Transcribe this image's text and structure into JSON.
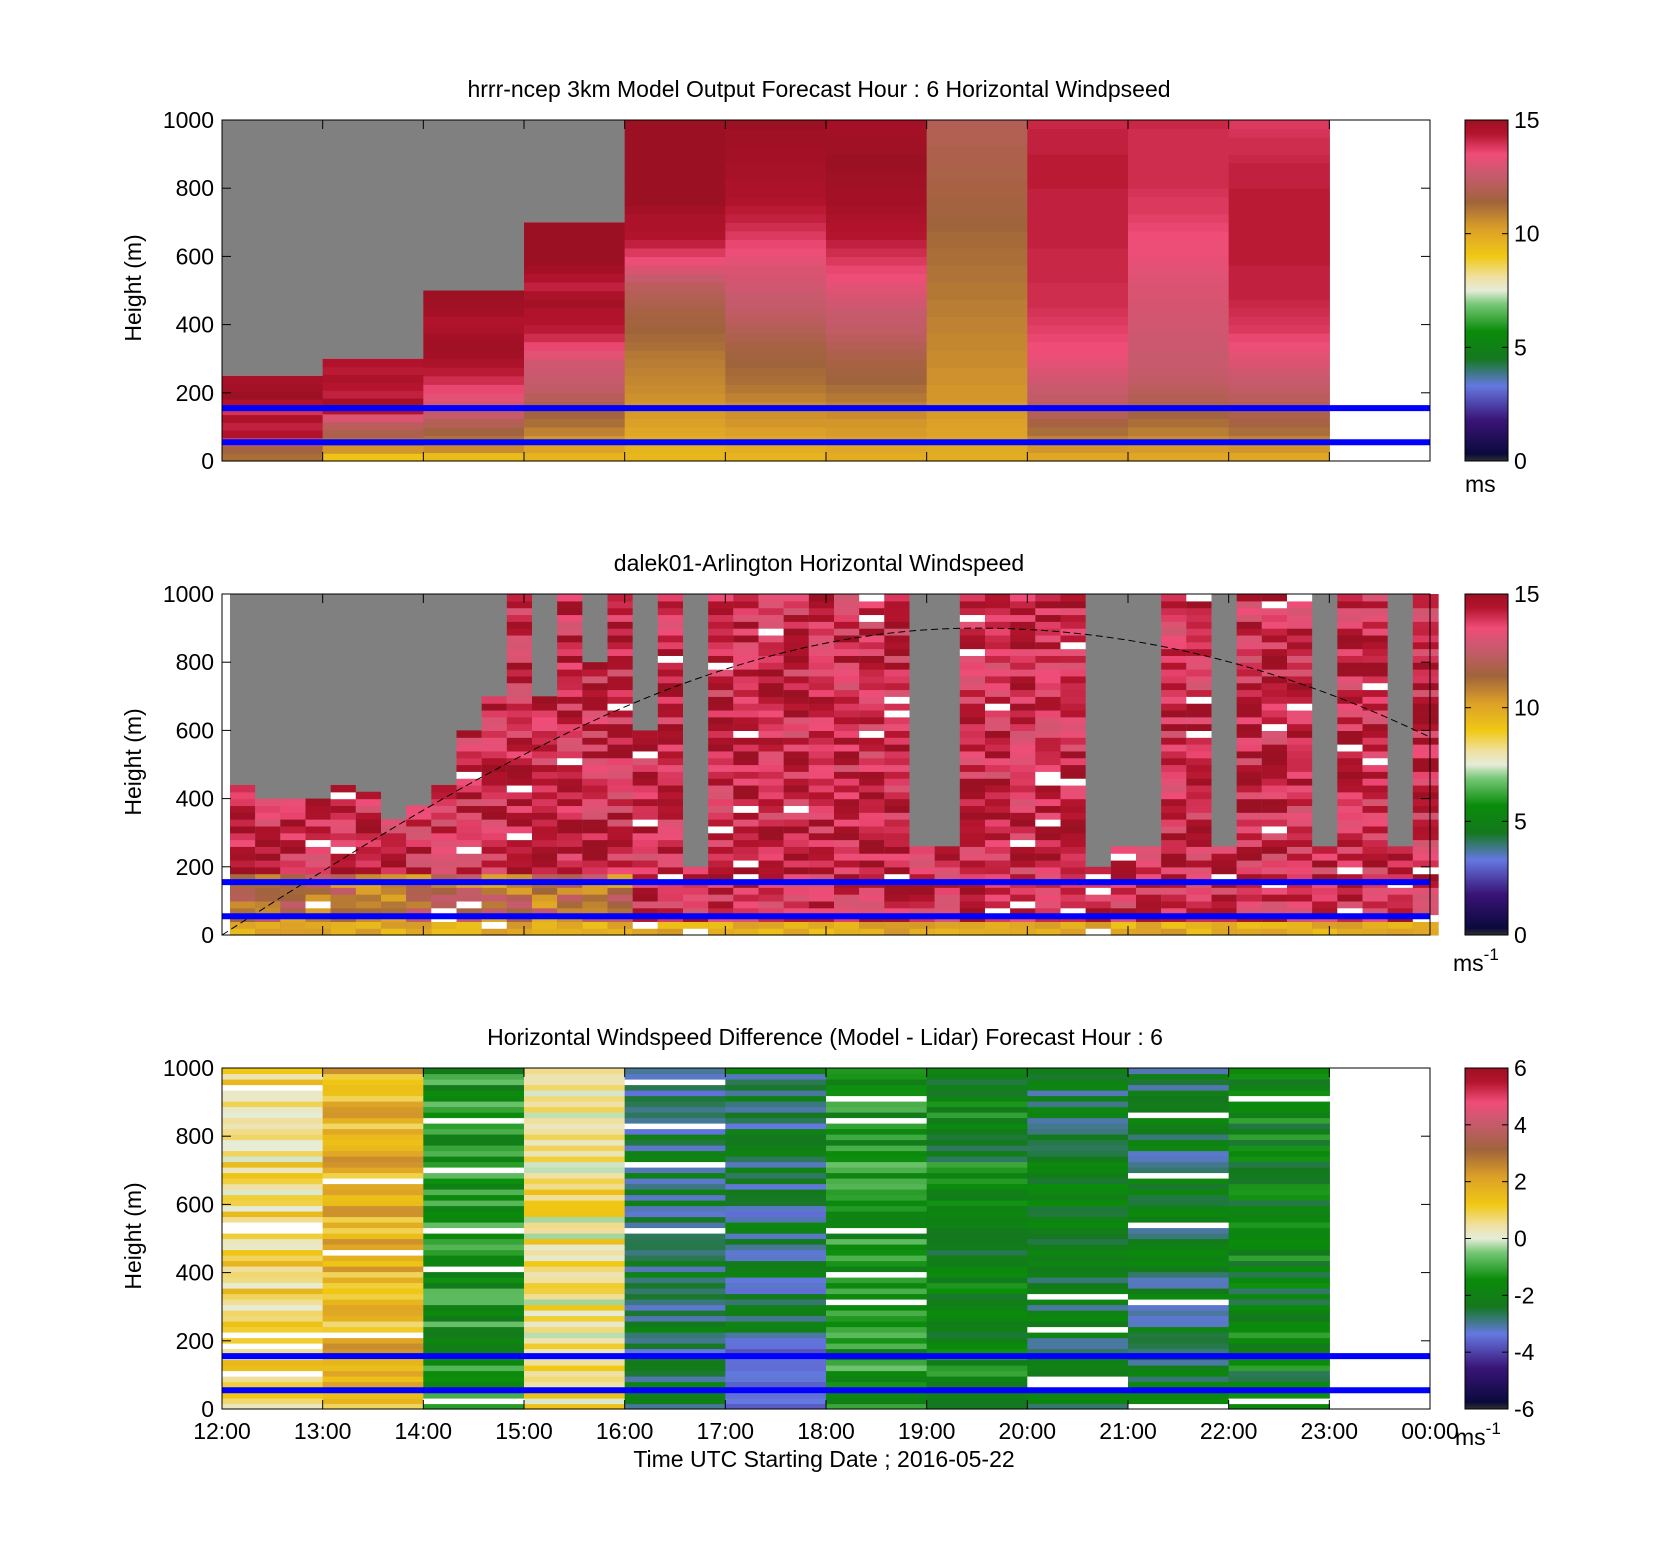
{
  "figure": {
    "xlabel": "Time UTC  Starting Date ; 2016-05-22",
    "x_ticks": [
      "12:00",
      "13:00",
      "14:00",
      "15:00",
      "16:00",
      "17:00",
      "18:00",
      "19:00",
      "20:00",
      "21:00",
      "22:00",
      "23:00",
      "00:00"
    ]
  },
  "colors": {
    "reference_line": "#0000ff",
    "no_data": "#808080",
    "colormap": [
      [
        0,
        "#303030"
      ],
      [
        0.02,
        "#0a0a3c"
      ],
      [
        0.12,
        "#3a1478"
      ],
      [
        0.22,
        "#6478e0"
      ],
      [
        0.3,
        "#14781e"
      ],
      [
        0.38,
        "#0a8c0a"
      ],
      [
        0.46,
        "#78c878"
      ],
      [
        0.5,
        "#e6ecd8"
      ],
      [
        0.54,
        "#f0e0a0"
      ],
      [
        0.6,
        "#f0c814"
      ],
      [
        0.68,
        "#dca028"
      ],
      [
        0.76,
        "#a0643c"
      ],
      [
        0.84,
        "#c85a6e"
      ],
      [
        0.9,
        "#f04c78"
      ],
      [
        0.96,
        "#b4142d"
      ],
      [
        1,
        "#9c1024"
      ]
    ]
  },
  "chart_data": [
    {
      "id": "model",
      "type": "heatmap",
      "title": "hrrr-ncep 3km Model Output   Forecast Hour : 6 Horizontal Windpseed",
      "ylabel": "Height (m)",
      "x_range": [
        "12:00",
        "00:00"
      ],
      "ylim": [
        0,
        1000
      ],
      "y_ticks": [
        0,
        200,
        400,
        600,
        800,
        1000
      ],
      "colorbar": {
        "range": [
          0,
          15
        ],
        "ticks": [
          0,
          5,
          10,
          15
        ],
        "unit": "ms"
      },
      "reference_lines_m": [
        155,
        55
      ],
      "series": [
        {
          "start": "12:00",
          "top_m": 250,
          "speeds": [
            11.2,
            11.5,
            12.7,
            14.5,
            14.2,
            14.6,
            13.9,
            14.5,
            15.0,
            14.8,
            14.7
          ]
        },
        {
          "start": "13:00",
          "top_m": 300,
          "speeds": [
            9.1,
            10.4,
            11.0,
            11.8,
            12.2,
            13.0,
            14.5,
            14.8,
            14.2,
            14.4,
            14.6,
            14.3,
            14.5
          ]
        },
        {
          "start": "14:00",
          "top_m": 500,
          "speeds": [
            9.4,
            10.6,
            11.1,
            11.5,
            12.0,
            12.5,
            12.8,
            13.2,
            13.6,
            14.0,
            14.3,
            14.6,
            14.8,
            14.9,
            14.8,
            14.6,
            14.5,
            14.8,
            14.9,
            15.0
          ]
        },
        {
          "start": "15:00",
          "top_m": 700,
          "speeds": [
            9.6,
            10.1,
            10.4,
            10.8,
            11.2,
            11.5,
            11.8,
            12.1,
            12.4,
            12.5,
            12.7,
            12.8,
            13.2,
            13.6,
            14.0,
            14.3,
            14.5,
            14.5,
            14.8,
            14.6,
            14.2,
            14.5,
            14.8,
            15.0,
            15.1,
            15.1,
            15.0,
            15.0
          ]
        },
        {
          "start": "16:00",
          "top_m": 1000,
          "speeds": [
            9.5,
            9.6,
            9.8,
            10.0,
            10.2,
            10.3,
            10.4,
            10.5,
            10.6,
            10.7,
            10.8,
            10.9,
            11.0,
            11.2,
            11.3,
            11.4,
            11.5,
            11.6,
            11.8,
            12.0,
            12.2,
            12.6,
            13.0,
            13.4,
            13.8,
            14.2,
            14.5,
            14.6,
            14.6,
            14.8,
            15.0,
            15.1,
            15.3,
            15.4,
            15.5,
            15.5,
            15.6,
            15.6,
            15.6,
            15.7
          ]
        },
        {
          "start": "17:00",
          "top_m": 1000,
          "speeds": [
            9.6,
            9.8,
            10.0,
            10.2,
            10.4,
            10.5,
            10.6,
            10.8,
            11.0,
            11.2,
            11.3,
            11.4,
            11.5,
            11.6,
            11.8,
            12.0,
            12.2,
            12.4,
            12.5,
            12.6,
            12.8,
            12.9,
            13.0,
            13.2,
            13.4,
            13.6,
            13.8,
            14.0,
            14.2,
            14.3,
            14.5,
            14.6,
            14.6,
            14.7,
            14.7,
            14.8,
            14.8,
            14.9,
            14.9,
            15.0
          ]
        },
        {
          "start": "18:00",
          "top_m": 1000,
          "speeds": [
            9.8,
            10.0,
            10.2,
            10.3,
            10.4,
            10.6,
            10.8,
            11.0,
            11.2,
            11.4,
            11.5,
            11.6,
            11.8,
            12.0,
            12.2,
            12.4,
            12.5,
            12.6,
            12.8,
            13.0,
            13.2,
            13.4,
            13.6,
            13.8,
            14.0,
            14.2,
            14.4,
            14.5,
            14.6,
            14.7,
            14.8,
            14.8,
            14.9,
            14.9,
            15.0,
            15.0,
            14.9,
            14.9,
            14.8,
            14.8
          ]
        },
        {
          "start": "19:00",
          "top_m": 1000,
          "speeds": [
            9.8,
            9.9,
            10.0,
            10.1,
            10.2,
            10.3,
            10.3,
            10.4,
            10.4,
            10.5,
            10.5,
            10.6,
            10.6,
            10.7,
            10.7,
            10.8,
            10.8,
            10.9,
            10.9,
            11.0,
            11.0,
            11.1,
            11.1,
            11.2,
            11.2,
            11.3,
            11.3,
            11.4,
            11.4,
            11.5,
            11.5,
            11.6,
            11.6,
            11.7,
            11.7,
            11.8,
            11.8,
            11.9,
            11.9,
            12.0
          ]
        },
        {
          "start": "20:00",
          "top_m": 1000,
          "speeds": [
            10.0,
            10.4,
            10.8,
            11.2,
            11.6,
            12.0,
            12.2,
            12.4,
            12.6,
            12.8,
            13.0,
            13.2,
            13.4,
            13.5,
            13.6,
            13.7,
            13.8,
            13.9,
            14.0,
            14.0,
            14.0,
            14.1,
            14.1,
            14.1,
            14.1,
            14.2,
            14.2,
            14.2,
            14.2,
            14.2,
            14.2,
            14.2,
            14.3,
            14.3,
            14.3,
            14.3,
            14.2,
            14.2,
            14.2,
            14.1
          ]
        },
        {
          "start": "21:00",
          "top_m": 1000,
          "speeds": [
            10.0,
            10.3,
            10.6,
            10.9,
            11.2,
            11.5,
            11.8,
            12.0,
            12.2,
            12.4,
            12.5,
            12.6,
            12.6,
            12.7,
            12.7,
            12.8,
            12.8,
            12.9,
            12.9,
            13.0,
            13.0,
            13.1,
            13.2,
            13.3,
            13.4,
            13.4,
            13.5,
            13.6,
            13.7,
            13.8,
            13.8,
            13.9,
            14.0,
            14.0,
            14.0,
            14.0,
            14.0,
            14.0,
            14.0,
            14.1
          ]
        },
        {
          "start": "22:00",
          "top_m": 1000,
          "speeds": [
            10.0,
            10.4,
            10.8,
            11.2,
            11.6,
            11.8,
            12.0,
            12.2,
            12.4,
            12.6,
            12.8,
            13.0,
            13.2,
            13.4,
            13.6,
            13.8,
            13.9,
            14.0,
            14.1,
            14.2,
            14.2,
            14.2,
            14.2,
            14.3,
            14.3,
            14.3,
            14.3,
            14.3,
            14.3,
            14.3,
            14.3,
            14.3,
            14.2,
            14.2,
            14.2,
            14.1,
            14.0,
            14.0,
            13.9,
            13.8
          ]
        }
      ]
    },
    {
      "id": "lidar",
      "type": "heatmap",
      "title": "dalek01-Arlington  Horizontal Windspeed",
      "ylabel": "Height (m)",
      "x_range": [
        "12:00",
        "00:00"
      ],
      "ylim": [
        0,
        1000
      ],
      "y_ticks": [
        0,
        200,
        400,
        600,
        800,
        1000
      ],
      "colorbar": {
        "range": [
          0,
          15
        ],
        "ticks": [
          0,
          5,
          10,
          15
        ],
        "unit": "ms",
        "unit_exponent": "-1"
      },
      "reference_lines_m": [
        155,
        55
      ],
      "time_step_hours": 0.25,
      "profile_tops_m": [
        440,
        400,
        400,
        390,
        440,
        420,
        330,
        380,
        440,
        600,
        700,
        1000,
        700,
        1000,
        800,
        1000,
        600,
        1000,
        200,
        1000,
        1000,
        1000,
        1000,
        1000,
        1000,
        1000,
        1000,
        1000,
        1000,
        1000,
        1000,
        1000,
        1000,
        1000,
        200,
        1000,
        1000,
        1000,
        1000,
        1000,
        1000,
        1000,
        1000,
        1000,
        1000,
        1000,
        1000,
        1000
      ],
      "gray_profile_columns": [
        27,
        28,
        34,
        35,
        36,
        39,
        43,
        46
      ],
      "dashed_curve": {
        "peak_time": "19:30",
        "peak_height_m": 900,
        "height_at_12_00_m": 0,
        "height_at_00_00_m": 580
      }
    },
    {
      "id": "difference",
      "type": "heatmap",
      "title": "Horizontal Windspeed Difference (Model - Lidar) Forecast Hour : 6",
      "ylabel": "Height (m)",
      "x_range": [
        "12:00",
        "00:00"
      ],
      "ylim": [
        0,
        1000
      ],
      "y_ticks": [
        0,
        200,
        400,
        600,
        800,
        1000
      ],
      "colorbar": {
        "range": [
          -6,
          6
        ],
        "ticks": [
          -6,
          -4,
          -2,
          0,
          2,
          4,
          6
        ],
        "unit": "ms",
        "unit_exponent": "-1"
      },
      "reference_lines_m": [
        155,
        55
      ],
      "hourly_mean_difference": [
        {
          "start": "12:00",
          "value": 0.8
        },
        {
          "start": "13:00",
          "value": 1.6
        },
        {
          "start": "14:00",
          "value": -1.5
        },
        {
          "start": "15:00",
          "value": 0.5
        },
        {
          "start": "16:00",
          "value": -2.6
        },
        {
          "start": "17:00",
          "value": -2.6
        },
        {
          "start": "18:00",
          "value": -1.4
        },
        {
          "start": "19:00",
          "value": -1.9
        },
        {
          "start": "20:00",
          "value": -2.3
        },
        {
          "start": "21:00",
          "value": -2.4
        },
        {
          "start": "22:00",
          "value": -1.9
        }
      ]
    }
  ]
}
